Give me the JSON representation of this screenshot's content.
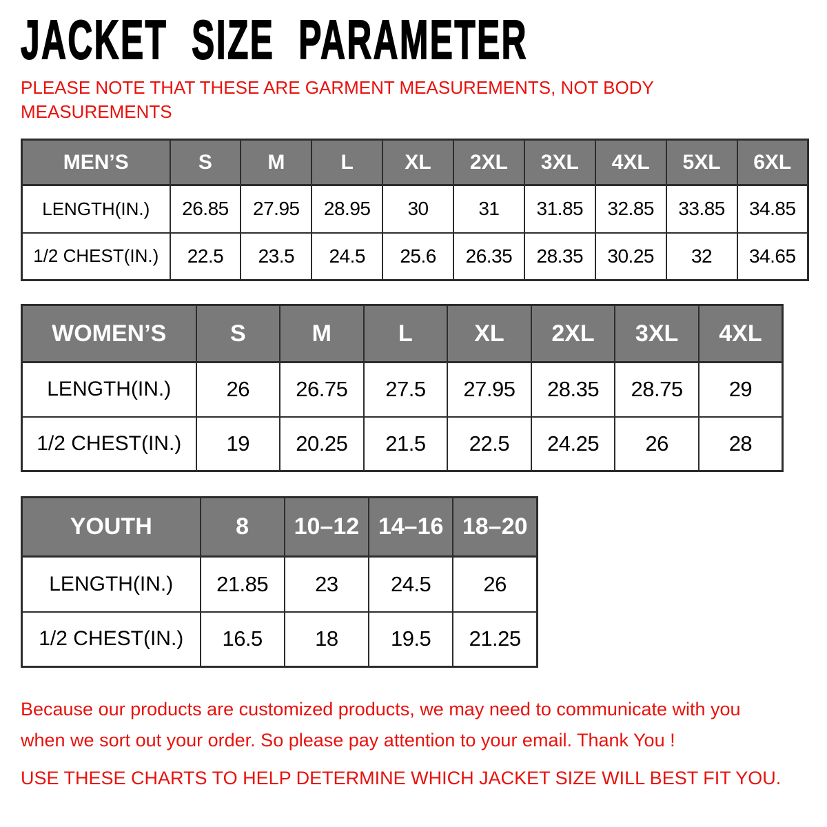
{
  "header": {
    "title": "JACKET SIZE PARAMETER",
    "note_lines": [
      "PLEASE NOTE THAT THESE ARE GARMENT MEASUREMENTS, NOT BODY",
      "MEASUREMENTS"
    ]
  },
  "tables": [
    {
      "name": "mens",
      "group_label": "MEN’S",
      "sizes": [
        "S",
        "M",
        "L",
        "XL",
        "2XL",
        "3XL",
        "4XL",
        "5XL",
        "6XL"
      ],
      "rows": [
        {
          "label": "LENGTH(IN.)",
          "values": [
            "26.85",
            "27.95",
            "28.95",
            "30",
            "31",
            "31.85",
            "32.85",
            "33.85",
            "34.85"
          ]
        },
        {
          "label": "1/2 CHEST(IN.)",
          "values": [
            "22.5",
            "23.5",
            "24.5",
            "25.6",
            "26.35",
            "28.35",
            "30.25",
            "32",
            "34.65"
          ]
        }
      ]
    },
    {
      "name": "womens",
      "group_label": "WOMEN’S",
      "sizes": [
        "S",
        "M",
        "L",
        "XL",
        "2XL",
        "3XL",
        "4XL"
      ],
      "rows": [
        {
          "label": "LENGTH(IN.)",
          "values": [
            "26",
            "26.75",
            "27.5",
            "27.95",
            "28.35",
            "28.75",
            "29"
          ]
        },
        {
          "label": "1/2 CHEST(IN.)",
          "values": [
            "19",
            "20.25",
            "21.5",
            "22.5",
            "24.25",
            "26",
            "28"
          ]
        }
      ]
    },
    {
      "name": "youth",
      "group_label": "YOUTH",
      "sizes": [
        "8",
        "10–12",
        "14–16",
        "18–20"
      ],
      "rows": [
        {
          "label": "LENGTH(IN.)",
          "values": [
            "21.85",
            "23",
            "24.5",
            "26"
          ]
        },
        {
          "label": "1/2 CHEST(IN.)",
          "values": [
            "16.5",
            "18",
            "19.5",
            "21.25"
          ]
        }
      ]
    }
  ],
  "footer": {
    "customized_note_lines": [
      "Because our products are customized products, we may need to communicate with you",
      "when we sort out your order. So please pay attention to your email. Thank You !"
    ],
    "usage_note": "USE THESE CHARTS TO HELP DETERMINE WHICH JACKET SIZE WILL BEST FIT YOU."
  },
  "colors": {
    "accent_red": "#e8120d",
    "header_bg": "#7a7a7a",
    "header_text": "#ffffff",
    "table_border": "#2d2d2d",
    "title_black": "#000000"
  }
}
